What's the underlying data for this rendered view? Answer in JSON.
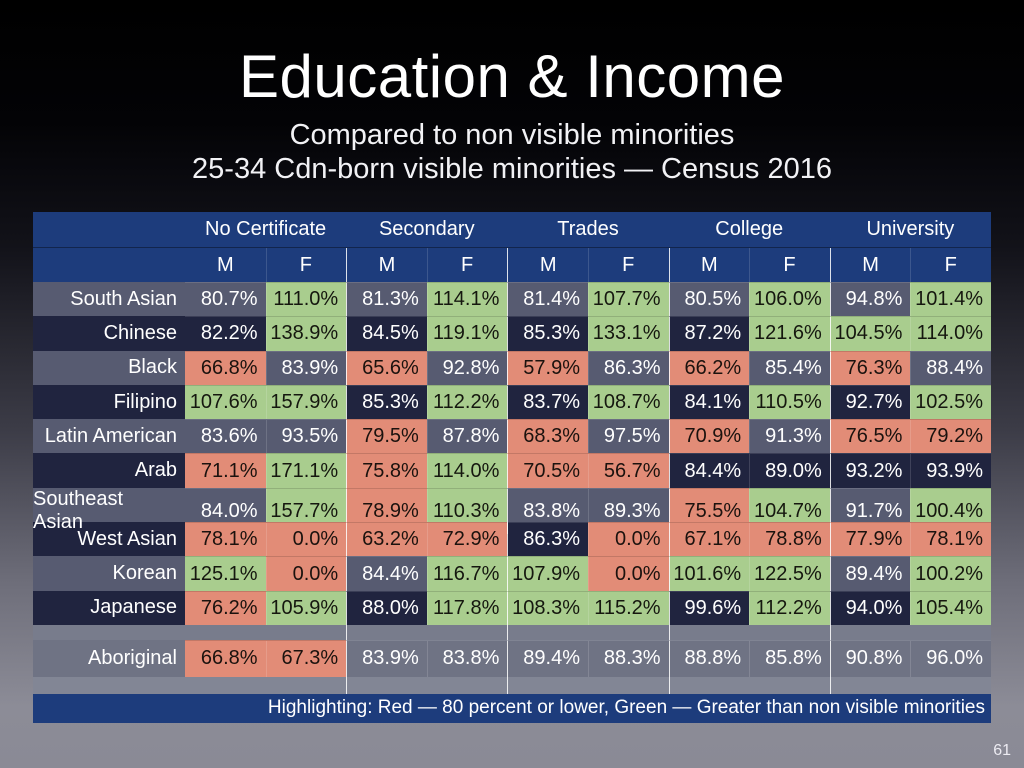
{
  "slide": {
    "title": "Education & Income",
    "subtitle_line1": "Compared to non visible minorities",
    "subtitle_line2": "25-34 Cdn-born visible minorities — Census 2016",
    "page_number": "61"
  },
  "table": {
    "column_groups": [
      "No Certificate",
      "Secondary",
      "Trades",
      "College",
      "University"
    ],
    "sub_columns": [
      "M",
      "F",
      "M",
      "F",
      "M",
      "F",
      "M",
      "F",
      "M",
      "F"
    ],
    "rows": [
      {
        "label": "South Asian",
        "variant": "light",
        "cells": [
          [
            "80.7%",
            "n"
          ],
          [
            "111.0%",
            "g"
          ],
          [
            "81.3%",
            "n"
          ],
          [
            "114.1%",
            "g"
          ],
          [
            "81.4%",
            "n"
          ],
          [
            "107.7%",
            "g"
          ],
          [
            "80.5%",
            "n"
          ],
          [
            "106.0%",
            "g"
          ],
          [
            "94.8%",
            "n"
          ],
          [
            "101.4%",
            "g"
          ]
        ]
      },
      {
        "label": "Chinese",
        "variant": "dark",
        "cells": [
          [
            "82.2%",
            "n"
          ],
          [
            "138.9%",
            "g"
          ],
          [
            "84.5%",
            "n"
          ],
          [
            "119.1%",
            "g"
          ],
          [
            "85.3%",
            "n"
          ],
          [
            "133.1%",
            "g"
          ],
          [
            "87.2%",
            "n"
          ],
          [
            "121.6%",
            "g"
          ],
          [
            "104.5%",
            "g"
          ],
          [
            "114.0%",
            "g"
          ]
        ]
      },
      {
        "label": "Black",
        "variant": "light",
        "cells": [
          [
            "66.8%",
            "r"
          ],
          [
            "83.9%",
            "n"
          ],
          [
            "65.6%",
            "r"
          ],
          [
            "92.8%",
            "n"
          ],
          [
            "57.9%",
            "r"
          ],
          [
            "86.3%",
            "n"
          ],
          [
            "66.2%",
            "r"
          ],
          [
            "85.4%",
            "n"
          ],
          [
            "76.3%",
            "r"
          ],
          [
            "88.4%",
            "n"
          ]
        ]
      },
      {
        "label": "Filipino",
        "variant": "dark",
        "cells": [
          [
            "107.6%",
            "g"
          ],
          [
            "157.9%",
            "g"
          ],
          [
            "85.3%",
            "n"
          ],
          [
            "112.2%",
            "g"
          ],
          [
            "83.7%",
            "n"
          ],
          [
            "108.7%",
            "g"
          ],
          [
            "84.1%",
            "n"
          ],
          [
            "110.5%",
            "g"
          ],
          [
            "92.7%",
            "n"
          ],
          [
            "102.5%",
            "g"
          ]
        ]
      },
      {
        "label": "Latin American",
        "variant": "light",
        "cells": [
          [
            "83.6%",
            "n"
          ],
          [
            "93.5%",
            "n"
          ],
          [
            "79.5%",
            "r"
          ],
          [
            "87.8%",
            "n"
          ],
          [
            "68.3%",
            "r"
          ],
          [
            "97.5%",
            "n"
          ],
          [
            "70.9%",
            "r"
          ],
          [
            "91.3%",
            "n"
          ],
          [
            "76.5%",
            "r"
          ],
          [
            "79.2%",
            "r"
          ]
        ]
      },
      {
        "label": "Arab",
        "variant": "dark",
        "cells": [
          [
            "71.1%",
            "r"
          ],
          [
            "171.1%",
            "g"
          ],
          [
            "75.8%",
            "r"
          ],
          [
            "114.0%",
            "g"
          ],
          [
            "70.5%",
            "r"
          ],
          [
            "56.7%",
            "r"
          ],
          [
            "84.4%",
            "n"
          ],
          [
            "89.0%",
            "n"
          ],
          [
            "93.2%",
            "n"
          ],
          [
            "93.9%",
            "n"
          ]
        ]
      },
      {
        "label": "Southeast Asian",
        "variant": "light",
        "cells": [
          [
            "84.0%",
            "n"
          ],
          [
            "157.7%",
            "g"
          ],
          [
            "78.9%",
            "r"
          ],
          [
            "110.3%",
            "g"
          ],
          [
            "83.8%",
            "n"
          ],
          [
            "89.3%",
            "n"
          ],
          [
            "75.5%",
            "r"
          ],
          [
            "104.7%",
            "g"
          ],
          [
            "91.7%",
            "n"
          ],
          [
            "100.4%",
            "g"
          ]
        ]
      },
      {
        "label": "West Asian",
        "variant": "dark",
        "cells": [
          [
            "78.1%",
            "r"
          ],
          [
            "0.0%",
            "r"
          ],
          [
            "63.2%",
            "r"
          ],
          [
            "72.9%",
            "r"
          ],
          [
            "86.3%",
            "n"
          ],
          [
            "0.0%",
            "r"
          ],
          [
            "67.1%",
            "r"
          ],
          [
            "78.8%",
            "r"
          ],
          [
            "77.9%",
            "r"
          ],
          [
            "78.1%",
            "r"
          ]
        ]
      },
      {
        "label": "Korean",
        "variant": "light",
        "cells": [
          [
            "125.1%",
            "g"
          ],
          [
            "0.0%",
            "r"
          ],
          [
            "84.4%",
            "n"
          ],
          [
            "116.7%",
            "g"
          ],
          [
            "107.9%",
            "g"
          ],
          [
            "0.0%",
            "r"
          ],
          [
            "101.6%",
            "g"
          ],
          [
            "122.5%",
            "g"
          ],
          [
            "89.4%",
            "n"
          ],
          [
            "100.2%",
            "g"
          ]
        ]
      },
      {
        "label": "Japanese",
        "variant": "dark",
        "cells": [
          [
            "76.2%",
            "r"
          ],
          [
            "105.9%",
            "g"
          ],
          [
            "88.0%",
            "n"
          ],
          [
            "117.8%",
            "g"
          ],
          [
            "108.3%",
            "g"
          ],
          [
            "115.2%",
            "g"
          ],
          [
            "99.6%",
            "n"
          ],
          [
            "112.2%",
            "g"
          ],
          [
            "94.0%",
            "n"
          ],
          [
            "105.4%",
            "g"
          ]
        ]
      },
      {
        "label": "Aboriginal",
        "variant": "gray",
        "cells": [
          [
            "66.8%",
            "r"
          ],
          [
            "67.3%",
            "r"
          ],
          [
            "83.9%",
            "n"
          ],
          [
            "83.8%",
            "n"
          ],
          [
            "89.4%",
            "n"
          ],
          [
            "88.3%",
            "n"
          ],
          [
            "88.8%",
            "n"
          ],
          [
            "85.8%",
            "n"
          ],
          [
            "90.8%",
            "n"
          ],
          [
            "96.0%",
            "n"
          ]
        ]
      }
    ],
    "footer": "Highlighting: Red — 80 percent or lower, Green — Greater than non visible minorities"
  },
  "colors": {
    "header_blue": "#1d3c7c",
    "footer_blue": "#1d3c7c",
    "highlight_green": "#a9cd8e",
    "highlight_red": "#e28c77",
    "row_light": "#575b71",
    "row_dark": "#20243f",
    "aboriginal_row": "#6f7384",
    "spacer_1": "#787c8c",
    "spacer_2": "#828695"
  }
}
